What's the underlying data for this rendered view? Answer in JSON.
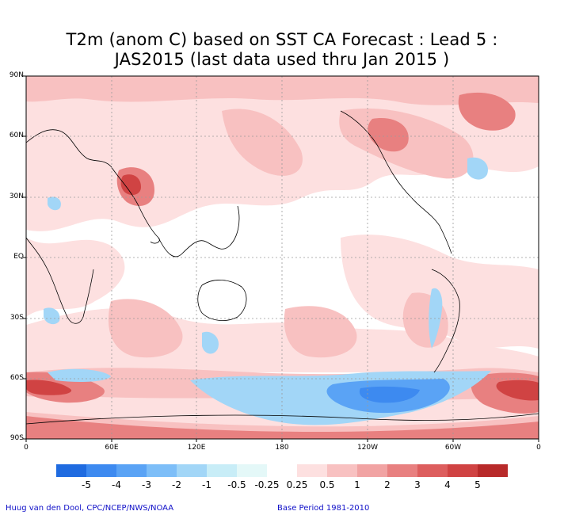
{
  "title_line1": "T2m (anom C) based on SST CA Forecast : Lead 5 :",
  "title_line2": "JAS2015 (last data used thru Jan 2015 )",
  "lat_labels": [
    "90N",
    "60N",
    "30N",
    "EQ",
    "30S",
    "60S",
    "90S"
  ],
  "lon_labels": [
    "0",
    "60E",
    "120E",
    "180",
    "120W",
    "60W",
    "0"
  ],
  "colorbar": {
    "colors": [
      "#1f6be0",
      "#3d8af0",
      "#5aa3f5",
      "#7dbef8",
      "#a2d6f7",
      "#c8edf7",
      "#e4f8f8",
      "#ffffff",
      "#fde0e0",
      "#f8c1c1",
      "#f1a3a3",
      "#e88080",
      "#dd5e5e",
      "#d04343",
      "#b82a2a"
    ],
    "labels": [
      "-5",
      "-4",
      "-3",
      "-2",
      "-1",
      "-0.5",
      "-0.25",
      "0.25",
      "0.5",
      "1",
      "2",
      "3",
      "4",
      "5"
    ]
  },
  "map_colors": {
    "light_pink": "#fde0e0",
    "pink": "#f8c1c1",
    "red": "#e88080",
    "dark_red": "#d04343",
    "light_blue": "#a2d6f7",
    "blue": "#5aa3f5",
    "dark_blue": "#3d8af0"
  },
  "credit_left": "Huug van den Dool, CPC/NCEP/NWS/NOAA",
  "credit_right": "Base Period 1981-2010"
}
